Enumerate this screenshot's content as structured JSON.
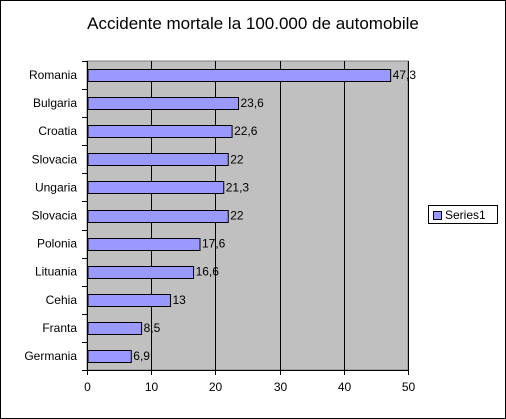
{
  "chart_data": {
    "type": "bar",
    "orientation": "horizontal",
    "title": "Accidente mortale la 100.000 de automobile",
    "xlabel": "",
    "ylabel": "",
    "categories": [
      "Romania",
      "Bulgaria",
      "Croatia",
      "Slovacia",
      "Ungaria",
      "Slovacia",
      "Polonia",
      "Lituania",
      "Cehia",
      "Franta",
      "Germania"
    ],
    "value_labels": [
      "47,3",
      "23,6",
      "22,6",
      "22",
      "21,3",
      "22",
      "17,6",
      "16,6",
      "13",
      "8,5",
      "6,9"
    ],
    "series": [
      {
        "name": "Series1",
        "values": [
          47.3,
          23.6,
          22.6,
          22,
          21.3,
          22,
          17.6,
          16.6,
          13,
          8.5,
          6.9
        ]
      }
    ],
    "xlim": [
      0,
      50
    ],
    "xticks": [
      0,
      10,
      20,
      30,
      40,
      50
    ],
    "grid": true,
    "legend": "right",
    "colors": {
      "bar": "#9999ff",
      "plot_area": "#c0c0c0",
      "grid": "#000000"
    }
  }
}
